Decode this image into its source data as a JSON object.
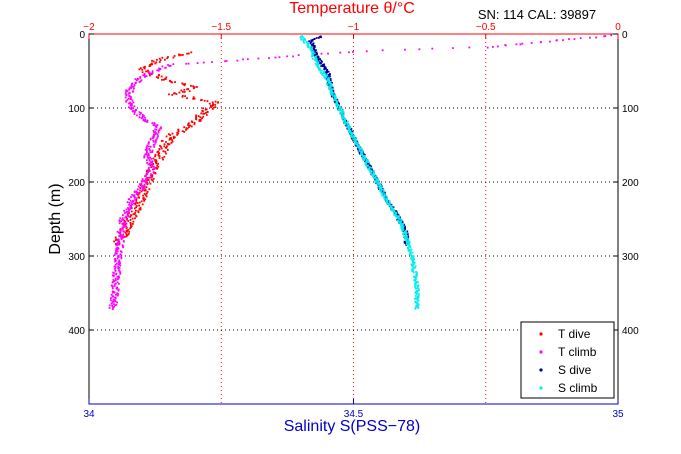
{
  "chart_data": {
    "type": "scatter",
    "header_text": "SN: 114  CAL: 39897",
    "top_axis": {
      "label": "Temperature θ/°C",
      "range": [
        -2,
        0
      ],
      "ticks": [
        -2,
        -1.5,
        -1,
        -0.5,
        0
      ],
      "tick_labels": [
        "−2",
        "−1.5",
        "−1",
        "−0.5",
        "0"
      ],
      "color": "#ff0000"
    },
    "bottom_axis": {
      "label": "Salinity S(PSS−78)",
      "range": [
        34,
        35
      ],
      "ticks": [
        34,
        34.5,
        35
      ],
      "tick_labels": [
        "34",
        "34.5",
        "35"
      ],
      "color": "#0000cc"
    },
    "y_axis": {
      "label": "Depth (m)",
      "range": [
        0,
        500
      ],
      "inverted": true,
      "ticks": [
        0,
        100,
        200,
        300,
        400
      ],
      "tick_labels": [
        "0",
        "100",
        "200",
        "300",
        "400"
      ]
    },
    "grid": "dotted",
    "legend_position": "bottom-right",
    "series": [
      {
        "name": "T dive",
        "color": "#ff0000",
        "axis": "top",
        "noise": 0.022,
        "points": [
          [
            -1.62,
            25
          ],
          [
            -1.74,
            35
          ],
          [
            -1.8,
            48
          ],
          [
            -1.72,
            60
          ],
          [
            -1.6,
            72
          ],
          [
            -1.68,
            82
          ],
          [
            -1.52,
            92
          ],
          [
            -1.56,
            104
          ],
          [
            -1.6,
            120
          ],
          [
            -1.7,
            140
          ],
          [
            -1.72,
            160
          ],
          [
            -1.76,
            180
          ],
          [
            -1.78,
            200
          ],
          [
            -1.8,
            220
          ],
          [
            -1.84,
            245
          ],
          [
            -1.86,
            262
          ],
          [
            -1.89,
            285
          ]
        ]
      },
      {
        "name": "T climb",
        "color": "#ff00ff",
        "axis": "top",
        "noise": 0.015,
        "points": [
          [
            -0.02,
            2
          ],
          [
            -0.5,
            18
          ],
          [
            -1.0,
            24
          ],
          [
            -1.5,
            37
          ],
          [
            -1.7,
            42
          ],
          [
            -1.78,
            55
          ],
          [
            -1.84,
            68
          ],
          [
            -1.85,
            82
          ],
          [
            -1.84,
            100
          ],
          [
            -1.8,
            112
          ],
          [
            -1.74,
            125
          ],
          [
            -1.76,
            145
          ],
          [
            -1.78,
            165
          ],
          [
            -1.76,
            185
          ],
          [
            -1.8,
            205
          ],
          [
            -1.84,
            225
          ],
          [
            -1.87,
            250
          ],
          [
            -1.88,
            275
          ],
          [
            -1.89,
            300
          ],
          [
            -1.9,
            340
          ],
          [
            -1.91,
            372
          ]
        ]
      },
      {
        "name": "S dive",
        "color": "#000099",
        "axis": "bottom",
        "noise": 0.004,
        "points": [
          [
            34.44,
            3
          ],
          [
            34.42,
            10
          ],
          [
            34.43,
            30
          ],
          [
            34.45,
            50
          ],
          [
            34.46,
            80
          ],
          [
            34.48,
            110
          ],
          [
            34.5,
            140
          ],
          [
            34.53,
            180
          ],
          [
            34.56,
            220
          ],
          [
            34.59,
            255
          ],
          [
            34.6,
            270
          ],
          [
            34.6,
            285
          ]
        ]
      },
      {
        "name": "S climb",
        "color": "#00eeee",
        "axis": "bottom",
        "noise": 0.004,
        "points": [
          [
            34.4,
            3
          ],
          [
            34.42,
            20
          ],
          [
            34.43,
            40
          ],
          [
            34.45,
            60
          ],
          [
            34.46,
            80
          ],
          [
            34.48,
            110
          ],
          [
            34.5,
            140
          ],
          [
            34.53,
            180
          ],
          [
            34.56,
            220
          ],
          [
            34.59,
            255
          ],
          [
            34.6,
            275
          ],
          [
            34.61,
            300
          ],
          [
            34.62,
            340
          ],
          [
            34.62,
            372
          ]
        ]
      }
    ]
  }
}
